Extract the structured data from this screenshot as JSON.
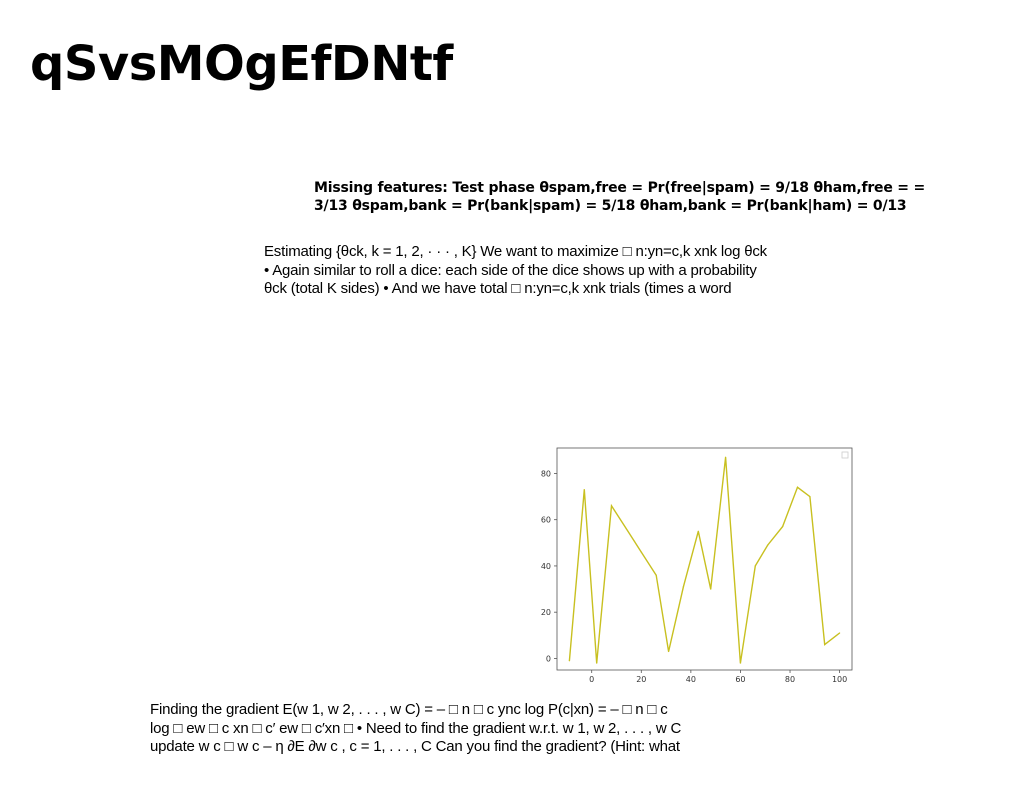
{
  "title": "qSvsMOgEfDNtf",
  "subheading": "Missing features: Test phase θspam,free = Pr(free|spam) = 9/18 θham,free = = 3/13 θspam,bank = Pr(bank|spam) = 5/18 θham,bank = Pr(bank|ham) = 0/13",
  "paragraph1": {
    "lines": [
      "Estimating {θck, k = 1, 2, · · · , K} We want to maximize □ n:yn=c,k xnk log θck",
      "• Again similar to roll a dice: each side of the dice shows up with a probability",
      "θck (total K sides) • And we have total □ n:yn=c,k xnk trials (times a word"
    ]
  },
  "paragraph2": {
    "lines": [
      "Finding the gradient E(w 1, w 2, . . . , w C) = – □ n □ c ync log P(c|xn) = – □ n □ c",
      "log □ ew □ c xn □ c′ ew □ c′xn □ • Need to find the gradient w.r.t. w 1, w 2, . . . , w C",
      "update w c □ w c – η ∂E ∂w c , c = 1, . . . , C Can you find the gradient? (Hint: what"
    ]
  },
  "chart_data": {
    "type": "line",
    "title": "",
    "xlabel": "",
    "ylabel": "",
    "x": [
      -9,
      -3,
      2,
      8,
      14,
      20,
      26,
      31,
      37,
      43,
      48,
      54,
      60,
      66,
      71,
      77,
      83,
      88,
      94,
      100
    ],
    "y": [
      -1,
      73,
      -2,
      66,
      56,
      46,
      36,
      3,
      31,
      55,
      30,
      87,
      -2,
      40,
      49,
      57,
      74,
      70,
      6,
      11
    ],
    "xlim": [
      -14,
      105
    ],
    "ylim": [
      -5,
      91
    ],
    "xticks": [
      0,
      20,
      40,
      60,
      80,
      100
    ],
    "yticks": [
      0,
      20,
      40,
      60,
      80
    ],
    "line_color": "#c8c020",
    "grid": false,
    "legend": "top-right (empty)"
  }
}
